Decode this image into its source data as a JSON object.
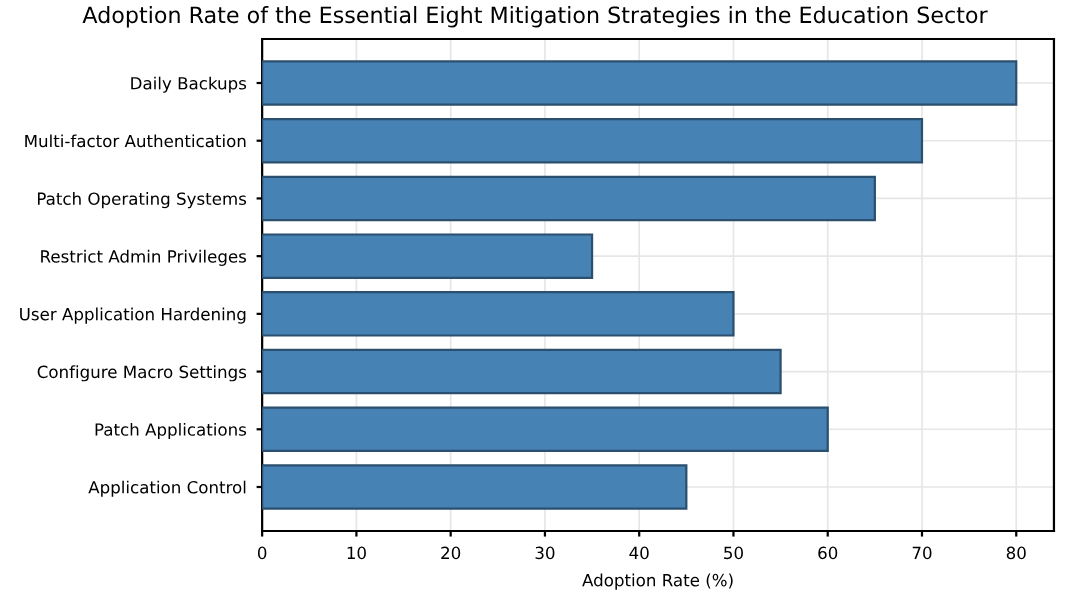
{
  "chart_data": {
    "type": "bar",
    "orientation": "horizontal",
    "title": "Adoption Rate of the Essential Eight Mitigation Strategies in the Education Sector",
    "xlabel": "Adoption Rate (%)",
    "categories": [
      "Daily Backups",
      "Multi-factor Authentication",
      "Patch Operating Systems",
      "Restrict Admin Privileges",
      "User Application Hardening",
      "Configure Macro Settings",
      "Patch Applications",
      "Application Control"
    ],
    "values": [
      80,
      70,
      65,
      35,
      50,
      55,
      60,
      45
    ],
    "color": "#4682b4",
    "xlim": [
      0,
      84
    ],
    "xticks": [
      0,
      10,
      20,
      30,
      40,
      50,
      60,
      70,
      80
    ],
    "grid": true,
    "legend": false
  }
}
